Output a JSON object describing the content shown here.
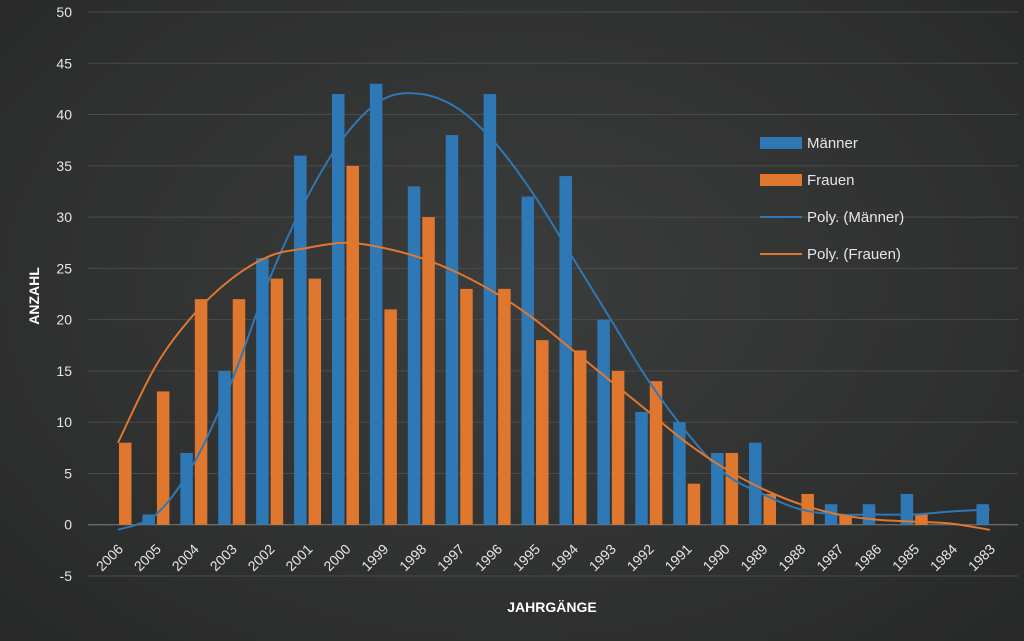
{
  "chart_data": {
    "type": "bar",
    "xlabel": "JAHRGÄNGE",
    "ylabel": "ANZAHL",
    "ylim": [
      -5,
      50
    ],
    "yticks": [
      -5,
      0,
      5,
      10,
      15,
      20,
      25,
      30,
      35,
      40,
      45,
      50
    ],
    "grid": true,
    "legend_position": "right",
    "categories": [
      "2006",
      "2005",
      "2004",
      "2003",
      "2002",
      "2001",
      "2000",
      "1999",
      "1998",
      "1997",
      "1996",
      "1995",
      "1994",
      "1993",
      "1992",
      "1991",
      "1990",
      "1989",
      "1988",
      "1987",
      "1986",
      "1985",
      "1984",
      "1983"
    ],
    "series": [
      {
        "name": "Männer",
        "color": "#2e78b6",
        "values": [
          0,
          1,
          7,
          15,
          26,
          36,
          42,
          43,
          33,
          38,
          42,
          32,
          34,
          20,
          11,
          10,
          7,
          8,
          0,
          2,
          2,
          3,
          0,
          2
        ]
      },
      {
        "name": "Frauen",
        "color": "#e0772e",
        "values": [
          8,
          13,
          22,
          22,
          24,
          24,
          35,
          21,
          30,
          23,
          23,
          18,
          17,
          15,
          14,
          4,
          7,
          3,
          3,
          1,
          0,
          1,
          0,
          0
        ]
      }
    ],
    "trendlines": [
      {
        "name": "Poly. (Männer)",
        "color": "#2e78b6",
        "values": [
          -0.5,
          1,
          6,
          14,
          24,
          32,
          38,
          41.5,
          42,
          40.5,
          37,
          32,
          26,
          20,
          14,
          9,
          5,
          3,
          1.5,
          1,
          1,
          1,
          1.3,
          1.5
        ]
      },
      {
        "name": "Poly. (Frauen)",
        "color": "#e0772e",
        "values": [
          8,
          15.5,
          20.5,
          24,
          26.2,
          27,
          27.5,
          27,
          26,
          24.5,
          22.5,
          20,
          17,
          14,
          11,
          8,
          5.5,
          3.5,
          2,
          1,
          0.5,
          0.3,
          0.1,
          -0.5
        ]
      }
    ]
  }
}
